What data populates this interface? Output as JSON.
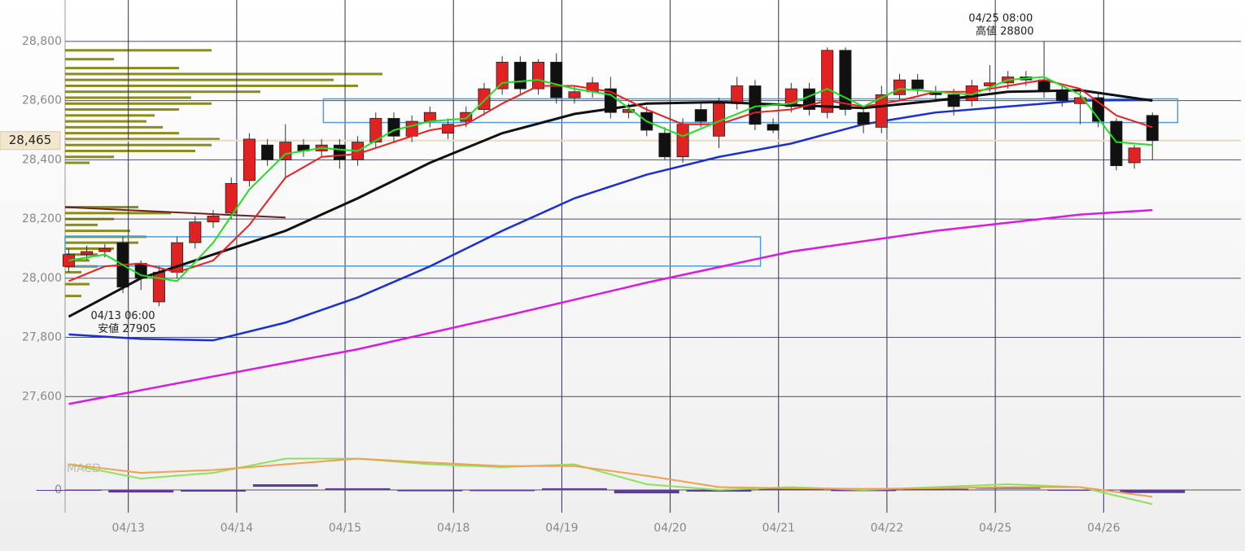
{
  "chart_data": {
    "type": "candlestick",
    "xlim": [
      -0.2,
      64.9
    ],
    "ylim": [
      27400,
      28940
    ],
    "xticks": [
      {
        "value": 3.3,
        "label": "04/13"
      },
      {
        "value": 9.3,
        "label": "04/14"
      },
      {
        "value": 15.3,
        "label": "04/15"
      },
      {
        "value": 21.3,
        "label": "04/18"
      },
      {
        "value": 27.3,
        "label": "04/19"
      },
      {
        "value": 33.3,
        "label": "04/20"
      },
      {
        "value": 39.3,
        "label": "04/21"
      },
      {
        "value": 45.3,
        "label": "04/22"
      },
      {
        "value": 51.3,
        "label": "04/25"
      },
      {
        "value": 57.3,
        "label": "04/26"
      }
    ],
    "yticks": [
      {
        "value": 27600,
        "label": "27,600"
      },
      {
        "value": 27800,
        "label": "27,800"
      },
      {
        "value": 28000,
        "label": "28,000"
      },
      {
        "value": 28200,
        "label": "28,200"
      },
      {
        "value": 28400,
        "label": "28,400"
      },
      {
        "value": 28600,
        "label": "28,600"
      },
      {
        "value": 28800,
        "label": "28,800"
      }
    ],
    "grid": true,
    "up_color": "#e02222",
    "down_color": "#111111",
    "open": [
      28040,
      28080,
      28090,
      28120,
      28050,
      27920,
      28020,
      28120,
      28190,
      28220,
      28330,
      28450,
      28400,
      28450,
      28430,
      28450,
      28400,
      28460,
      28540,
      28480,
      28530,
      28490,
      28530,
      28570,
      28640,
      28730,
      28640,
      28730,
      28610,
      28630,
      28640,
      28560,
      28560,
      28490,
      28410,
      28570,
      28480,
      28590,
      28650,
      28520,
      28580,
      28640,
      28560,
      28770,
      28560,
      28510,
      28620,
      28670,
      28630,
      28620,
      28600,
      28650,
      28660,
      28680,
      28670,
      28630,
      28590,
      28610,
      28530,
      28390,
      28550
    ],
    "high": [
      28100,
      28110,
      28115,
      28140,
      28060,
      28040,
      28140,
      28210,
      28230,
      28340,
      28490,
      28470,
      28520,
      28470,
      28470,
      28470,
      28480,
      28560,
      28560,
      28550,
      28580,
      28540,
      28580,
      28660,
      28750,
      28750,
      28740,
      28760,
      28650,
      28680,
      28680,
      28590,
      28580,
      28510,
      28540,
      28590,
      28610,
      28680,
      28670,
      28540,
      28660,
      28660,
      28780,
      28780,
      28580,
      28650,
      28690,
      28690,
      28650,
      28640,
      28670,
      28720,
      28700,
      28700,
      28800,
      28650,
      28630,
      28630,
      28540,
      28450,
      28560
    ],
    "low": [
      28020,
      28060,
      28070,
      27950,
      27960,
      27905,
      28000,
      28100,
      28170,
      28200,
      28310,
      28380,
      28340,
      28410,
      28410,
      28370,
      28380,
      28440,
      28460,
      28460,
      28510,
      28470,
      28510,
      28550,
      28620,
      28620,
      28620,
      28590,
      28590,
      28610,
      28540,
      28540,
      28480,
      28400,
      28390,
      28510,
      28440,
      28570,
      28500,
      28490,
      28560,
      28550,
      28540,
      28550,
      28490,
      28490,
      28600,
      28620,
      28600,
      28550,
      28580,
      28630,
      28640,
      28650,
      28610,
      28580,
      28520,
      28510,
      28365,
      28370,
      28400
    ],
    "close": [
      28080,
      28090,
      28100,
      27970,
      28000,
      28020,
      28120,
      28190,
      28210,
      28320,
      28470,
      28400,
      28460,
      28430,
      28450,
      28400,
      28460,
      28540,
      28480,
      28530,
      28560,
      28520,
      28560,
      28640,
      28730,
      28640,
      28730,
      28610,
      28630,
      28660,
      28560,
      28570,
      28500,
      28410,
      28520,
      28530,
      28590,
      28650,
      28520,
      28500,
      28640,
      28570,
      28770,
      28570,
      28520,
      28620,
      28670,
      28640,
      28620,
      28580,
      28650,
      28660,
      28680,
      28670,
      28630,
      28600,
      28610,
      28530,
      28380,
      28440,
      28465
    ],
    "moving_averages": [
      {
        "color": "#d81be0",
        "x": [
          0,
          8,
          16,
          24,
          32,
          40,
          48,
          56,
          60
        ],
        "values": [
          27575,
          27668,
          27760,
          27870,
          27985,
          28090,
          28160,
          28215,
          28230
        ]
      },
      {
        "color": "#1a2fd0",
        "x": [
          0,
          4,
          8,
          12,
          16,
          20,
          24,
          28,
          32,
          36,
          40,
          44,
          48,
          52,
          56,
          60
        ],
        "values": [
          27810,
          27795,
          27790,
          27850,
          27935,
          28040,
          28160,
          28270,
          28350,
          28410,
          28455,
          28520,
          28560,
          28580,
          28600,
          28602
        ]
      },
      {
        "color": "#111111",
        "x": [
          0,
          4,
          8,
          12,
          16,
          20,
          24,
          28,
          32,
          36,
          40,
          44,
          48,
          52,
          56,
          60
        ],
        "values": [
          27870,
          28000,
          28080,
          28160,
          28270,
          28390,
          28490,
          28555,
          28590,
          28595,
          28585,
          28575,
          28600,
          28630,
          28635,
          28600
        ]
      },
      {
        "color": "#e82020",
        "x": [
          0,
          2,
          4,
          6,
          8,
          10,
          12,
          14,
          16,
          18,
          20,
          22,
          24,
          26,
          28,
          30,
          32,
          34,
          36,
          38,
          40,
          42,
          44,
          46,
          48,
          50,
          52,
          54,
          56,
          58,
          60
        ],
        "values": [
          27990,
          28040,
          28050,
          28020,
          28060,
          28180,
          28340,
          28410,
          28420,
          28460,
          28500,
          28520,
          28590,
          28650,
          28650,
          28630,
          28570,
          28520,
          28520,
          28560,
          28570,
          28600,
          28580,
          28600,
          28630,
          28630,
          28650,
          28670,
          28640,
          28550,
          28510
        ]
      },
      {
        "color": "#22dd22",
        "x": [
          0,
          2,
          4,
          6,
          8,
          10,
          12,
          14,
          16,
          18,
          20,
          22,
          24,
          26,
          28,
          30,
          32,
          34,
          36,
          38,
          40,
          42,
          44,
          46,
          48,
          50,
          52,
          54,
          56,
          58,
          60
        ],
        "values": [
          28060,
          28080,
          28010,
          27990,
          28120,
          28300,
          28420,
          28440,
          28430,
          28500,
          28530,
          28540,
          28660,
          28670,
          28640,
          28620,
          28530,
          28480,
          28530,
          28580,
          28590,
          28640,
          28580,
          28640,
          28630,
          28620,
          28670,
          28680,
          28620,
          28460,
          28450
        ]
      }
    ],
    "volume_profile": {
      "color": "#808000",
      "prices": [
        28770,
        28740,
        28710,
        28690,
        28670,
        28650,
        28630,
        28610,
        28590,
        28570,
        28550,
        28530,
        28510,
        28490,
        28470,
        28450,
        28430,
        28410,
        28390,
        28240,
        28220,
        28200,
        28180,
        28160,
        28140,
        28120,
        28100,
        28080,
        28060,
        28040,
        28020,
        27980,
        27940
      ],
      "values": [
        180,
        60,
        140,
        390,
        330,
        360,
        240,
        155,
        180,
        140,
        110,
        100,
        120,
        140,
        190,
        180,
        160,
        60,
        30,
        90,
        130,
        60,
        40,
        80,
        100,
        90,
        60,
        40,
        30,
        40,
        20,
        30,
        20
      ]
    },
    "zones": [
      {
        "color": "#4a9ee0",
        "x": [
          14.1,
          61.4
        ],
        "y": [
          28526,
          28606
        ]
      },
      {
        "color": "#4a9ee0",
        "x": [
          -0.2,
          38.3
        ],
        "y": [
          28041,
          28140
        ]
      }
    ],
    "trend_line": {
      "color": "#6b2020",
      "x": [
        -0.2,
        12
      ],
      "y": [
        28240,
        28205
      ]
    },
    "current_price": {
      "value": 28465,
      "label": "28,465"
    },
    "annotations": [
      {
        "x": 3,
        "y": 27905,
        "lines": [
          "04/13 06:00",
          "安値 27905"
        ]
      },
      {
        "x": 51.6,
        "y": 28800,
        "lines": [
          "04/25 08:00",
          "高値 28800"
        ]
      }
    ],
    "macd": {
      "title": "MACD",
      "ylim": [
        -40,
        60
      ],
      "yticks": [
        0
      ],
      "x": [
        0,
        4,
        8,
        12,
        16,
        20,
        24,
        28,
        32,
        36,
        40,
        44,
        48,
        52,
        56,
        60
      ],
      "series": [
        {
          "color": "#90e060",
          "values": [
            45,
            20,
            30,
            55,
            55,
            45,
            40,
            45,
            10,
            0,
            5,
            0,
            5,
            10,
            5,
            -25
          ]
        },
        {
          "color": "#f0a050",
          "values": [
            45,
            30,
            35,
            45,
            55,
            48,
            42,
            42,
            25,
            5,
            3,
            2,
            3,
            5,
            5,
            -12
          ]
        }
      ],
      "histogram": {
        "color": "#5b3a9a",
        "values": [
          0,
          -10,
          -5,
          10,
          3,
          -3,
          -2,
          3,
          -15,
          -5,
          2,
          -2,
          2,
          5,
          0,
          -13
        ]
      }
    }
  }
}
